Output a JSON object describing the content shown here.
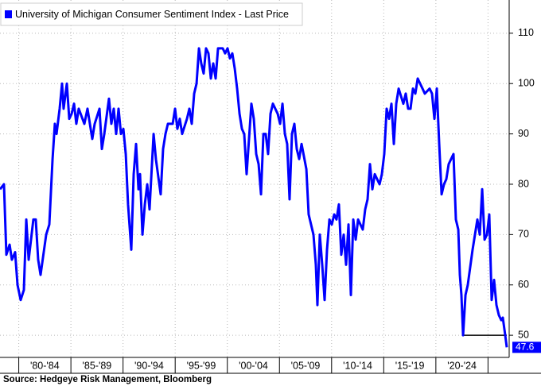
{
  "chart_data": {
    "type": "line",
    "source": "Source: Hedgeye Risk Management, Bloomberg",
    "x": [
      1978.2,
      1978.58,
      1978.81,
      1979.12,
      1979.34,
      1979.65,
      1979.88,
      1980.18,
      1980.49,
      1980.72,
      1980.95,
      1981.4,
      1981.63,
      1981.86,
      1982.09,
      1982.63,
      1982.93,
      1983.24,
      1983.46,
      1983.62,
      1983.92,
      1984.15,
      1984.3,
      1984.61,
      1984.84,
      1985.07,
      1985.3,
      1985.52,
      1985.75,
      1986.29,
      1986.59,
      1987.05,
      1987.28,
      1987.74,
      1987.97,
      1988.2,
      1988.65,
      1988.88,
      1989.11,
      1989.34,
      1989.57,
      1989.8,
      1990.03,
      1990.26,
      1990.48,
      1990.79,
      1991.02,
      1991.25,
      1991.48,
      1991.63,
      1991.86,
      1992.09,
      1992.32,
      1992.54,
      1992.93,
      1993.15,
      1993.61,
      1993.84,
      1994.07,
      1994.3,
      1994.76,
      1994.99,
      1995.21,
      1995.44,
      1995.67,
      1996.13,
      1996.36,
      1996.59,
      1996.82,
      1997.05,
      1997.28,
      1997.5,
      1997.73,
      1997.96,
      1998.19,
      1998.42,
      1998.65,
      1998.88,
      1999.11,
      1999.56,
      1999.79,
      2000.02,
      2000.25,
      2000.48,
      2000.71,
      2000.94,
      2001.17,
      2001.4,
      2001.62,
      2001.85,
      2002.08,
      2002.31,
      2002.54,
      2002.77,
      2003.0,
      2003.23,
      2003.46,
      2003.68,
      2003.91,
      2004.14,
      2004.37,
      2004.83,
      2005.06,
      2005.29,
      2005.52,
      2005.74,
      2005.97,
      2006.2,
      2006.43,
      2006.66,
      2006.89,
      2007.12,
      2007.58,
      2007.8,
      2008.26,
      2008.49,
      2008.64,
      2008.87,
      2009.1,
      2009.33,
      2009.56,
      2009.79,
      2010.02,
      2010.25,
      2010.47,
      2010.7,
      2010.93,
      2011.16,
      2011.39,
      2011.62,
      2011.85,
      2012.08,
      2012.31,
      2012.54,
      2012.99,
      2013.22,
      2013.45,
      2013.68,
      2013.91,
      2014.14,
      2014.6,
      2014.82,
      2015.05,
      2015.28,
      2015.51,
      2015.74,
      2015.97,
      2016.2,
      2016.43,
      2016.88,
      2017.11,
      2017.34,
      2017.57,
      2017.8,
      2018.03,
      2018.26,
      2018.49,
      2018.72,
      2018.94,
      2019.4,
      2019.63,
      2019.86,
      2020.09,
      2020.32,
      2020.55,
      2020.78,
      2021.0,
      2021.23,
      2021.69,
      2021.92,
      2022.15,
      2022.3,
      2022.45,
      2022.61,
      2022.84,
      2023.06,
      2023.52,
      2023.98,
      2024.21,
      2024.44,
      2024.67,
      2024.9,
      2025.12,
      2025.35,
      2025.58,
      2025.81,
      2026.04,
      2026.27,
      2026.42,
      2026.65,
      2026.8
    ],
    "series": [
      {
        "name": "University of Michigan Consumer Sentiment Index - Last Price",
        "color": "#0000ff",
        "values": [
          79,
          80,
          66,
          68,
          65,
          66.5,
          60,
          57,
          59,
          73,
          65,
          73,
          73,
          65,
          62,
          70,
          72,
          85,
          92,
          90,
          95,
          100,
          95,
          100,
          93,
          94,
          96,
          92,
          95,
          92,
          95,
          89,
          92,
          95,
          87,
          90,
          97,
          92,
          95,
          90,
          95,
          90,
          91,
          86,
          76,
          67,
          82,
          88,
          79,
          82,
          70,
          76,
          80,
          75,
          90,
          85,
          78,
          87,
          90,
          92,
          92,
          95,
          91,
          93,
          90,
          93,
          95,
          92,
          98,
          100,
          107,
          104,
          102,
          107,
          106,
          101,
          104,
          101,
          107,
          107,
          106,
          107,
          105,
          106,
          103,
          99,
          94,
          91,
          90,
          82,
          89,
          96,
          93,
          86,
          84,
          78,
          90,
          90,
          86,
          94,
          96,
          94,
          92,
          96,
          90,
          88,
          77,
          90,
          92,
          87,
          85,
          88,
          83,
          74,
          70,
          64,
          56,
          70,
          64,
          57,
          67,
          73,
          72,
          74,
          73,
          76,
          66,
          70,
          64,
          72,
          58,
          73,
          69,
          73,
          71,
          75,
          77,
          84,
          79,
          82,
          80,
          82,
          86,
          95,
          93,
          96,
          88,
          96,
          99,
          96,
          98,
          95,
          95,
          99,
          98,
          101,
          100,
          99,
          98,
          99,
          98,
          93,
          99,
          88,
          78,
          80,
          81,
          84,
          86,
          73,
          71,
          62,
          58,
          50,
          58,
          60,
          67,
          73,
          70,
          79,
          69,
          70,
          74,
          57,
          61,
          56,
          54,
          53,
          53.5,
          50,
          47.6
        ]
      }
    ],
    "xlim": [
      1978.2,
      2027.03
    ],
    "ylim": [
      45.6,
      116.6
    ],
    "yticks": [
      50,
      60,
      70,
      80,
      90,
      100,
      110
    ],
    "xdividers": [
      1980,
      1985,
      1990,
      1995,
      2000,
      2005,
      2010,
      2015,
      2020,
      2025
    ],
    "xticks": [
      {
        "value": 1982.5,
        "label": "'80-'84"
      },
      {
        "value": 1987.5,
        "label": "'85-'89"
      },
      {
        "value": 1992.5,
        "label": "'90-'94"
      },
      {
        "value": 1997.5,
        "label": "'95-'99"
      },
      {
        "value": 2002.5,
        "label": "'00-'04"
      },
      {
        "value": 2007.5,
        "label": "'05-'09"
      },
      {
        "value": 2012.5,
        "label": "'10-'14"
      },
      {
        "value": 2017.5,
        "label": "'15-'19"
      },
      {
        "value": 2022.5,
        "label": "'20-'24"
      }
    ],
    "reference_line": {
      "value": 50,
      "x": [
        2022.61,
        2026.8
      ],
      "color": "#000000"
    },
    "grid": true,
    "legend": "top-left"
  }
}
